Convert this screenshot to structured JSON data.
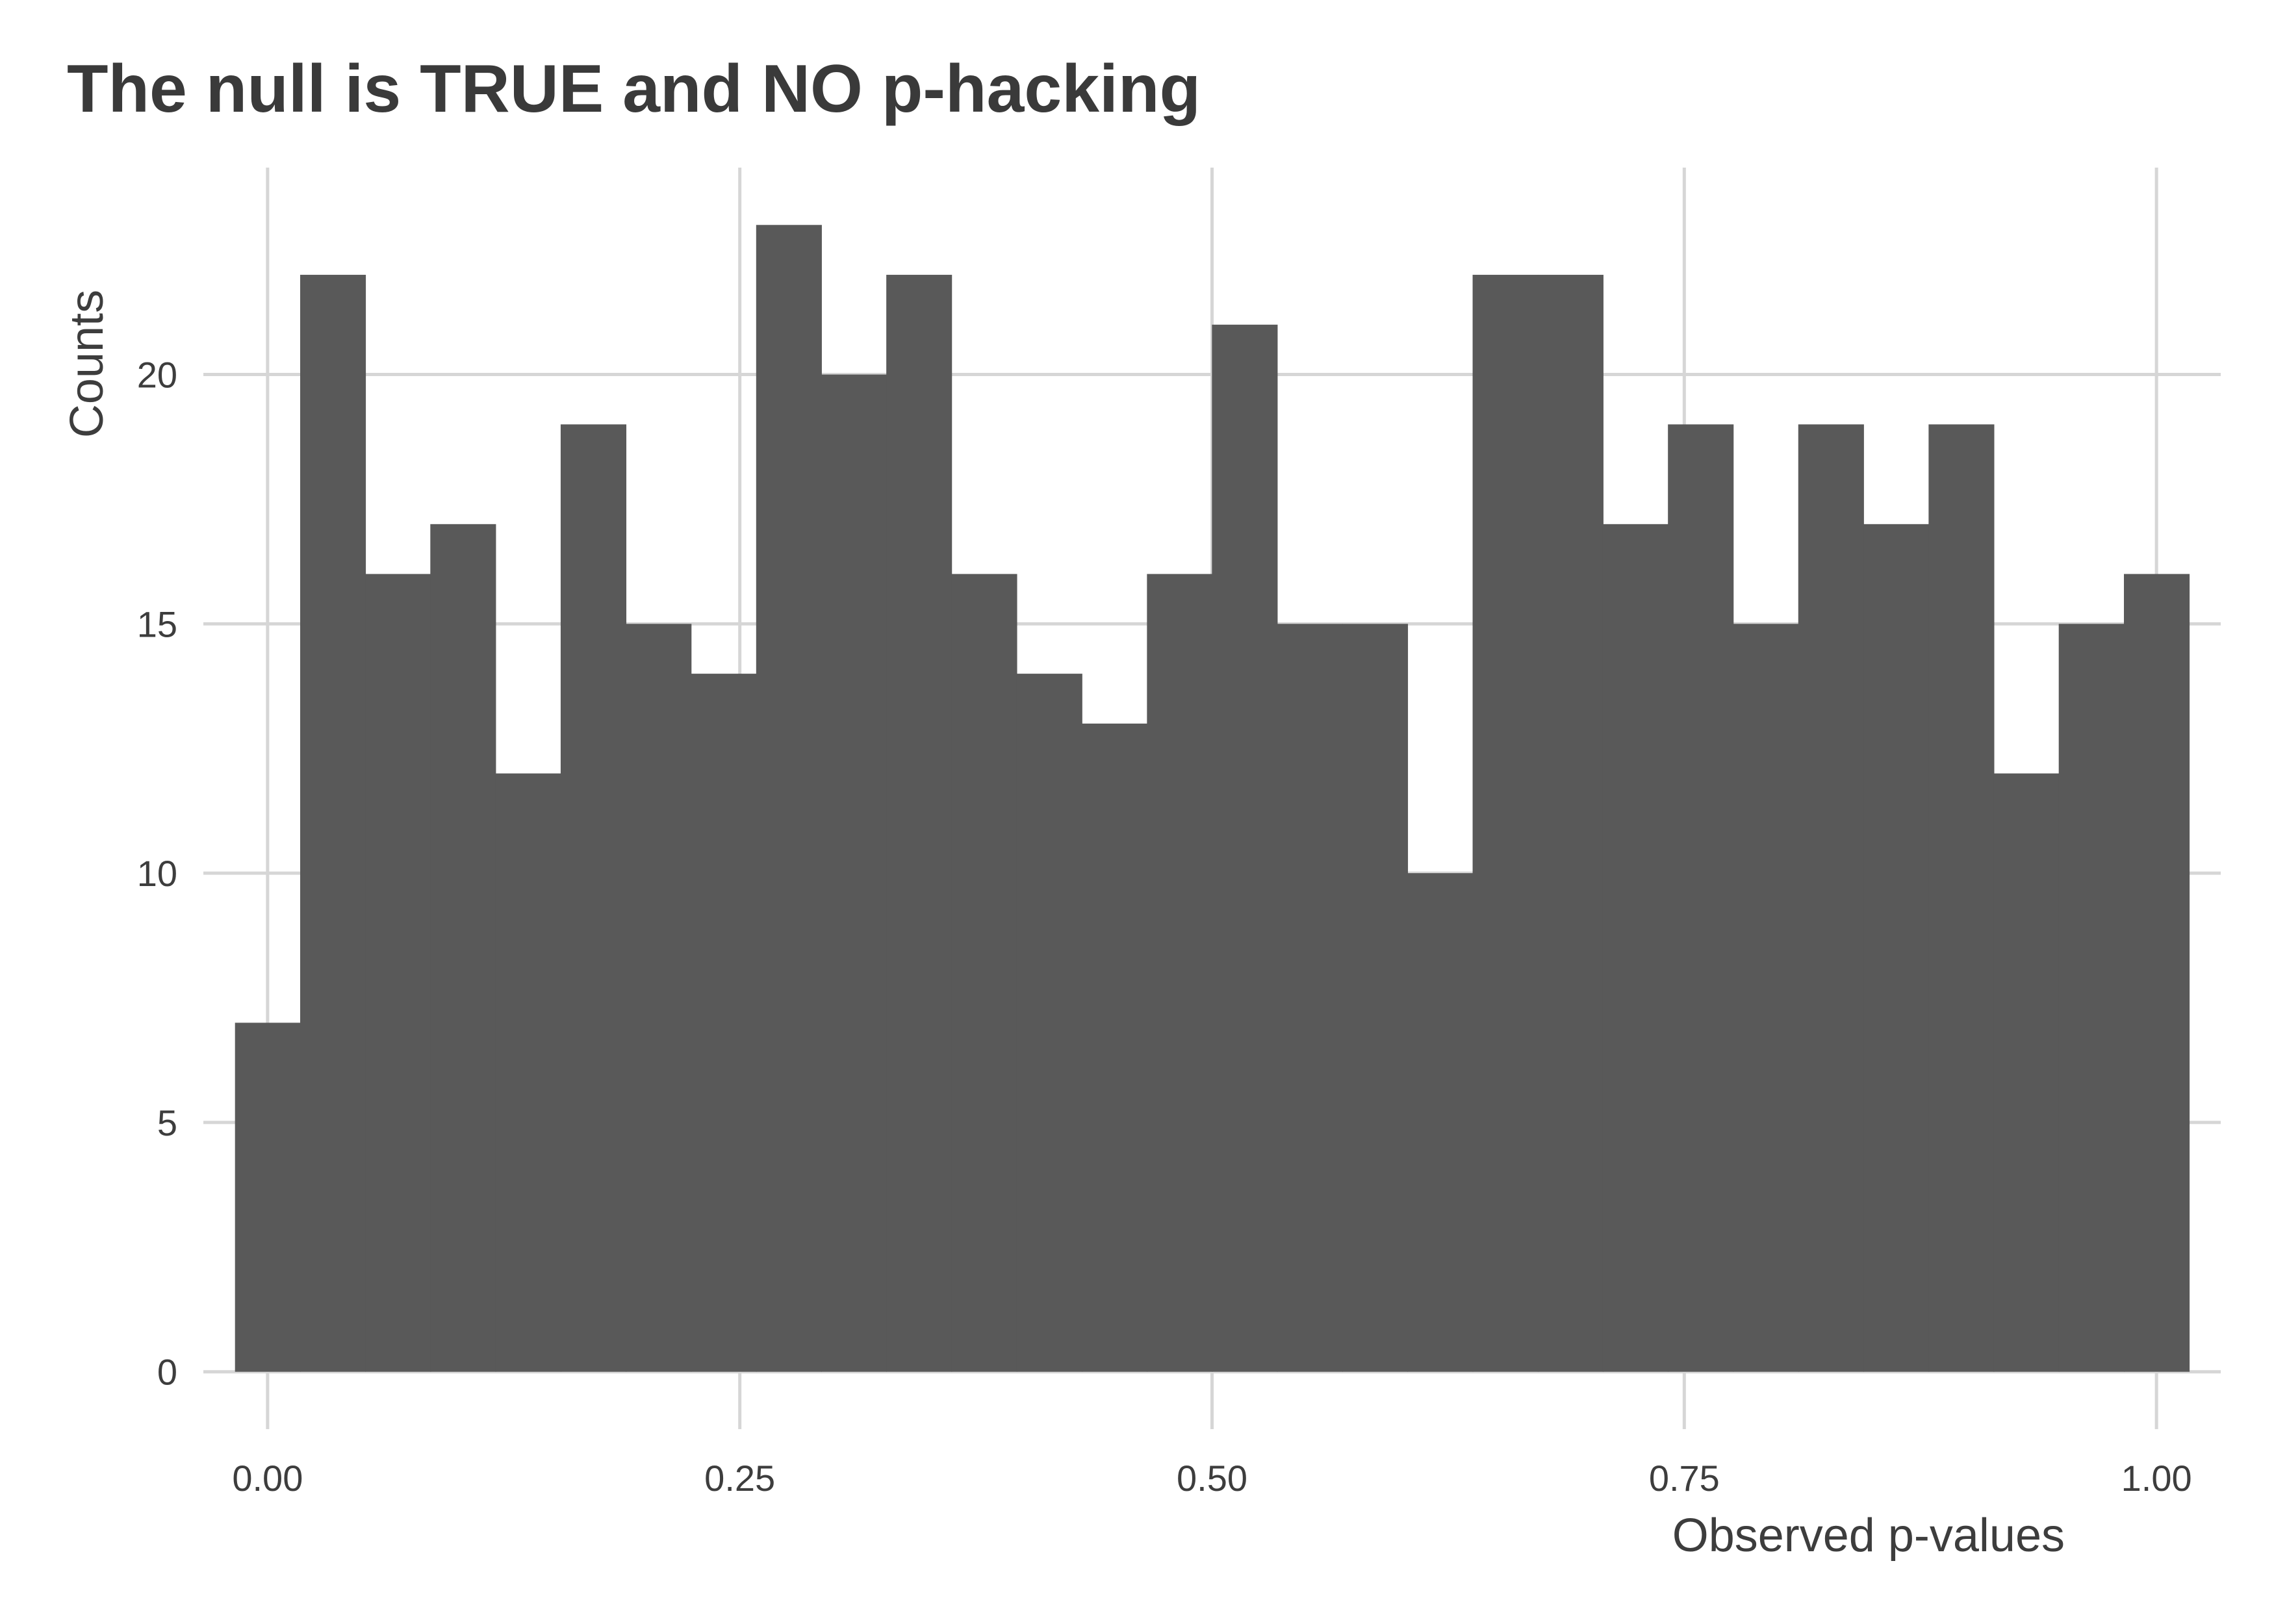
{
  "chart_data": {
    "type": "bar",
    "title": "The null is TRUE and NO p-hacking",
    "xlabel": "Observed p-values",
    "ylabel": "Counts",
    "bin_width": 0.0345,
    "x": [
      0,
      0.0345,
      0.069,
      0.1034,
      0.1379,
      0.1724,
      0.2069,
      0.2414,
      0.2759,
      0.3103,
      0.3448,
      0.3793,
      0.4138,
      0.4483,
      0.4828,
      0.5172,
      0.5517,
      0.5862,
      0.6207,
      0.6552,
      0.6897,
      0.7241,
      0.7586,
      0.7931,
      0.8276,
      0.8621,
      0.8966,
      0.931,
      0.9655,
      1.0
    ],
    "values": [
      7,
      22,
      16,
      17,
      12,
      19,
      15,
      14,
      23,
      20,
      22,
      16,
      14,
      13,
      16,
      21,
      15,
      15,
      10,
      22,
      22,
      17,
      19,
      15,
      19,
      17,
      19,
      12,
      15,
      16
    ],
    "xlim": [
      -0.034,
      1.034
    ],
    "ylim": [
      -1.15,
      24.15
    ],
    "x_ticks": [
      0,
      0.25,
      0.5,
      0.75,
      1
    ],
    "x_tick_labels": [
      "0.00",
      "0.25",
      "0.50",
      "0.75",
      "1.00"
    ],
    "y_ticks": [
      0,
      5,
      10,
      15,
      20
    ],
    "y_tick_labels": [
      "0",
      "5",
      "10",
      "15",
      "20"
    ],
    "grid": true,
    "colors": {
      "bar": "#595959",
      "grid": "#d6d6d6",
      "text": "#3d3d3d"
    }
  }
}
